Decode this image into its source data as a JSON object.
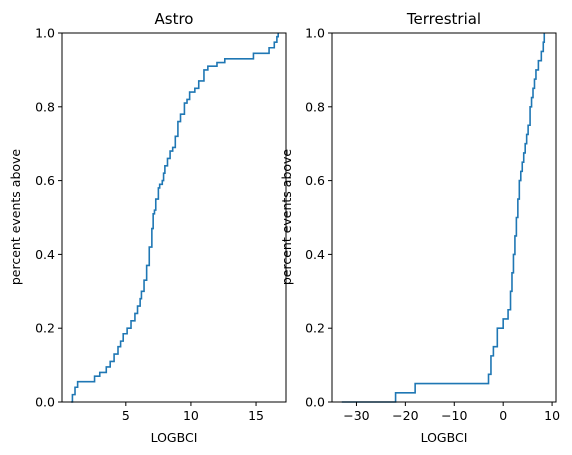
{
  "figure": {
    "colors": {
      "series": "#1f77b4",
      "axes": "#000000",
      "background": "#ffffff"
    }
  },
  "chart_data": [
    {
      "type": "line",
      "drawstyle": "steps-post",
      "title": "Astro",
      "xlabel": "LOGBCI",
      "ylabel": "percent events above",
      "xlim": [
        0.1,
        17.3
      ],
      "ylim": [
        0.0,
        1.0
      ],
      "xticks": [
        5,
        10,
        15
      ],
      "xtick_labels": [
        "5",
        "10",
        "15"
      ],
      "yticks": [
        0.0,
        0.2,
        0.4,
        0.6,
        0.8,
        1.0
      ],
      "ytick_labels": [
        "0.0",
        "0.2",
        "0.4",
        "0.6",
        "0.8",
        "1.0"
      ],
      "grid": false,
      "series": [
        {
          "color": "#1f77b4",
          "x": [
            0.8,
            0.9,
            1.1,
            1.3,
            1.5,
            2.6,
            3.0,
            3.5,
            3.8,
            4.1,
            4.4,
            4.6,
            4.8,
            5.1,
            5.4,
            5.7,
            5.9,
            6.1,
            6.2,
            6.4,
            6.6,
            6.8,
            7.0,
            7.1,
            7.2,
            7.3,
            7.5,
            7.6,
            7.8,
            7.9,
            8.0,
            8.2,
            8.4,
            8.6,
            8.8,
            9.0,
            9.2,
            9.4,
            9.5,
            9.7,
            9.9,
            10.3,
            10.6,
            11.0,
            11.3,
            12.0,
            12.6,
            14.8,
            16.0,
            16.4,
            16.6,
            16.7
          ],
          "y": [
            0.0,
            0.02,
            0.04,
            0.055,
            0.055,
            0.07,
            0.08,
            0.095,
            0.11,
            0.13,
            0.15,
            0.165,
            0.185,
            0.2,
            0.22,
            0.24,
            0.26,
            0.28,
            0.3,
            0.33,
            0.37,
            0.42,
            0.47,
            0.51,
            0.52,
            0.55,
            0.58,
            0.59,
            0.6,
            0.62,
            0.64,
            0.66,
            0.68,
            0.69,
            0.72,
            0.76,
            0.78,
            0.78,
            0.81,
            0.82,
            0.84,
            0.85,
            0.87,
            0.9,
            0.91,
            0.92,
            0.93,
            0.945,
            0.96,
            0.975,
            0.99,
            1.0
          ]
        }
      ]
    },
    {
      "type": "line",
      "drawstyle": "steps-post",
      "title": "Terrestrial",
      "xlabel": "LOGBCI",
      "ylabel": "percent events above",
      "xlim": [
        -35,
        10.8
      ],
      "ylim": [
        0.0,
        1.0
      ],
      "xticks": [
        -30,
        -20,
        -10,
        0,
        10
      ],
      "xtick_labels": [
        "−30",
        "−20",
        "−10",
        "0",
        "10"
      ],
      "yticks": [
        0.0,
        0.2,
        0.4,
        0.6,
        0.8,
        1.0
      ],
      "ytick_labels": [
        "0.0",
        "0.2",
        "0.4",
        "0.6",
        "0.8",
        "1.0"
      ],
      "grid": false,
      "series": [
        {
          "color": "#1f77b4",
          "x": [
            -33,
            -22,
            -18,
            -3,
            -2.5,
            -2,
            -1.2,
            0,
            1,
            1.5,
            1.8,
            2.1,
            2.4,
            2.7,
            3.0,
            3.3,
            3.6,
            3.9,
            4.2,
            4.5,
            4.8,
            5.1,
            5.5,
            5.8,
            6.1,
            6.4,
            6.7,
            7.2,
            7.8,
            8.2,
            8.4
          ],
          "y": [
            0.0,
            0.025,
            0.05,
            0.075,
            0.125,
            0.15,
            0.2,
            0.225,
            0.25,
            0.3,
            0.35,
            0.4,
            0.45,
            0.5,
            0.55,
            0.6,
            0.625,
            0.65,
            0.675,
            0.7,
            0.725,
            0.75,
            0.8,
            0.825,
            0.85,
            0.875,
            0.9,
            0.925,
            0.95,
            0.975,
            1.0
          ]
        }
      ]
    }
  ]
}
